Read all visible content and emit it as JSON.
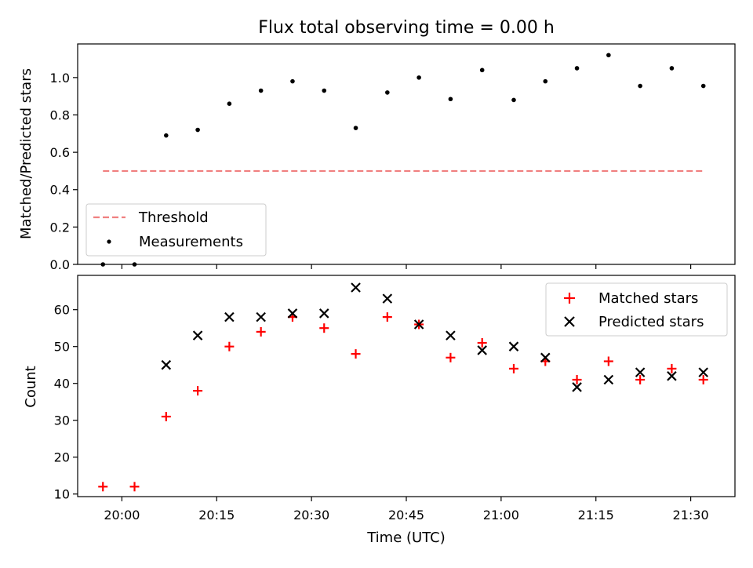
{
  "figure": {
    "title": "Flux total observing time = 0.00 h"
  },
  "chart_data": [
    {
      "type": "scatter",
      "ylabel": "Matched/Predicted stars",
      "xlabel": "",
      "ylim": [
        0,
        1.18
      ],
      "yticks": [
        0.0,
        0.2,
        0.4,
        0.6,
        0.8,
        1.0
      ],
      "ytick_labels": [
        "0.0",
        "0.2",
        "0.4",
        "0.6",
        "0.8",
        "1.0"
      ],
      "grid": false,
      "legend": {
        "placement": "bottom-left",
        "entries": [
          {
            "label": "Threshold",
            "style": "dashed-line",
            "color": "#f08080"
          },
          {
            "label": "Measurements",
            "style": "dot",
            "color": "#000000"
          }
        ]
      },
      "threshold": {
        "name": "Threshold",
        "x_start": "19:57",
        "x_end": "21:32",
        "value": 0.5,
        "color": "#f08080"
      },
      "series": [
        {
          "name": "Measurements",
          "color": "#000000",
          "x": [
            "19:57",
            "20:02",
            "20:07",
            "20:12",
            "20:17",
            "20:22",
            "20:27",
            "20:32",
            "20:37",
            "20:42",
            "20:47",
            "20:52",
            "20:57",
            "21:02",
            "21:07",
            "21:12",
            "21:17",
            "21:22",
            "21:27",
            "21:32"
          ],
          "y": [
            0.0,
            0.0,
            0.69,
            0.72,
            0.86,
            0.93,
            0.98,
            0.93,
            0.73,
            0.92,
            1.0,
            0.885,
            1.04,
            0.88,
            0.98,
            1.05,
            1.12,
            0.955,
            1.05,
            0.955
          ]
        }
      ]
    },
    {
      "type": "scatter",
      "ylabel": "Count",
      "xlabel": "Time (UTC)",
      "xlim": [
        "19:53",
        "21:37"
      ],
      "xticks": [
        "20:00",
        "20:15",
        "20:30",
        "20:45",
        "21:00",
        "21:15",
        "21:30"
      ],
      "ylim": [
        9.3,
        69.3
      ],
      "yticks": [
        10,
        20,
        30,
        40,
        50,
        60
      ],
      "ytick_labels": [
        "10",
        "20",
        "30",
        "40",
        "50",
        "60"
      ],
      "grid": false,
      "legend": {
        "placement": "top-right",
        "entries": [
          {
            "label": "Matched stars",
            "style": "plus",
            "color": "#ff0000"
          },
          {
            "label": "Predicted stars",
            "style": "x",
            "color": "#000000"
          }
        ]
      },
      "series": [
        {
          "name": "Matched stars",
          "marker": "plus",
          "color": "#ff0000",
          "x": [
            "19:57",
            "20:02",
            "20:07",
            "20:12",
            "20:17",
            "20:22",
            "20:27",
            "20:32",
            "20:37",
            "20:42",
            "20:47",
            "20:52",
            "20:57",
            "21:02",
            "21:07",
            "21:12",
            "21:17",
            "21:22",
            "21:27",
            "21:32"
          ],
          "y": [
            12,
            12,
            31,
            38,
            50,
            54,
            58,
            55,
            48,
            58,
            56,
            47,
            51,
            44,
            46,
            41,
            46,
            41,
            44,
            41
          ]
        },
        {
          "name": "Predicted stars",
          "marker": "x",
          "color": "#000000",
          "x": [
            "20:07",
            "20:12",
            "20:17",
            "20:22",
            "20:27",
            "20:32",
            "20:37",
            "20:42",
            "20:47",
            "20:52",
            "20:57",
            "21:02",
            "21:07",
            "21:12",
            "21:17",
            "21:22",
            "21:27",
            "21:32"
          ],
          "y": [
            45,
            53,
            58,
            58,
            59,
            59,
            66,
            63,
            56,
            53,
            49,
            50,
            47,
            39,
            41,
            43,
            42,
            43
          ]
        }
      ]
    }
  ]
}
